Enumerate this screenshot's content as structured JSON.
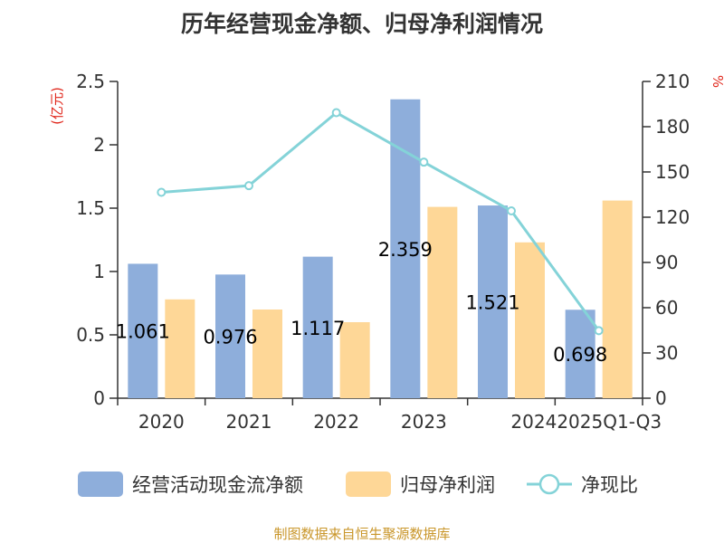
{
  "colors": {
    "cashflow": "#8eaedb",
    "netprofit": "#fed797",
    "ratio": "#84d3d8",
    "unit": "#e0271c",
    "axis": "#333333",
    "source": "#c9962a"
  },
  "chart_data": {
    "type": "bar",
    "title": "历年经营现金净额、归母净利润情况",
    "categories": [
      "2020",
      "2021",
      "2022",
      "2023",
      "2024",
      "2025Q1-Q3"
    ],
    "left_axis": {
      "unit": "(亿元)",
      "ylim": [
        0,
        2.5
      ],
      "ticks": [
        "0",
        "0.5",
        "1",
        "1.5",
        "2",
        "2.5"
      ]
    },
    "right_axis": {
      "unit": "%",
      "ylim": [
        0,
        210
      ],
      "ticks": [
        "0",
        "30",
        "60",
        "90",
        "120",
        "150",
        "180",
        "210"
      ]
    },
    "series": [
      {
        "name": "经营活动现金流净额",
        "kind": "bar",
        "axis": "left",
        "values": [
          1.061,
          0.976,
          1.117,
          2.359,
          1.521,
          0.698
        ],
        "labels": [
          "1.061",
          "0.976",
          "1.117",
          "2.359",
          "1.521",
          "0.698"
        ]
      },
      {
        "name": "归母净利润",
        "kind": "bar",
        "axis": "left",
        "values": [
          0.78,
          0.7,
          0.6,
          1.51,
          1.23,
          1.56
        ]
      },
      {
        "name": "净现比",
        "kind": "line",
        "axis": "right",
        "values": [
          136.5,
          140.9,
          189.3,
          156.5,
          124.2,
          44.8
        ]
      }
    ],
    "grid": false,
    "legend_position": "bottom"
  },
  "source": "制图数据来自恒生聚源数据库"
}
